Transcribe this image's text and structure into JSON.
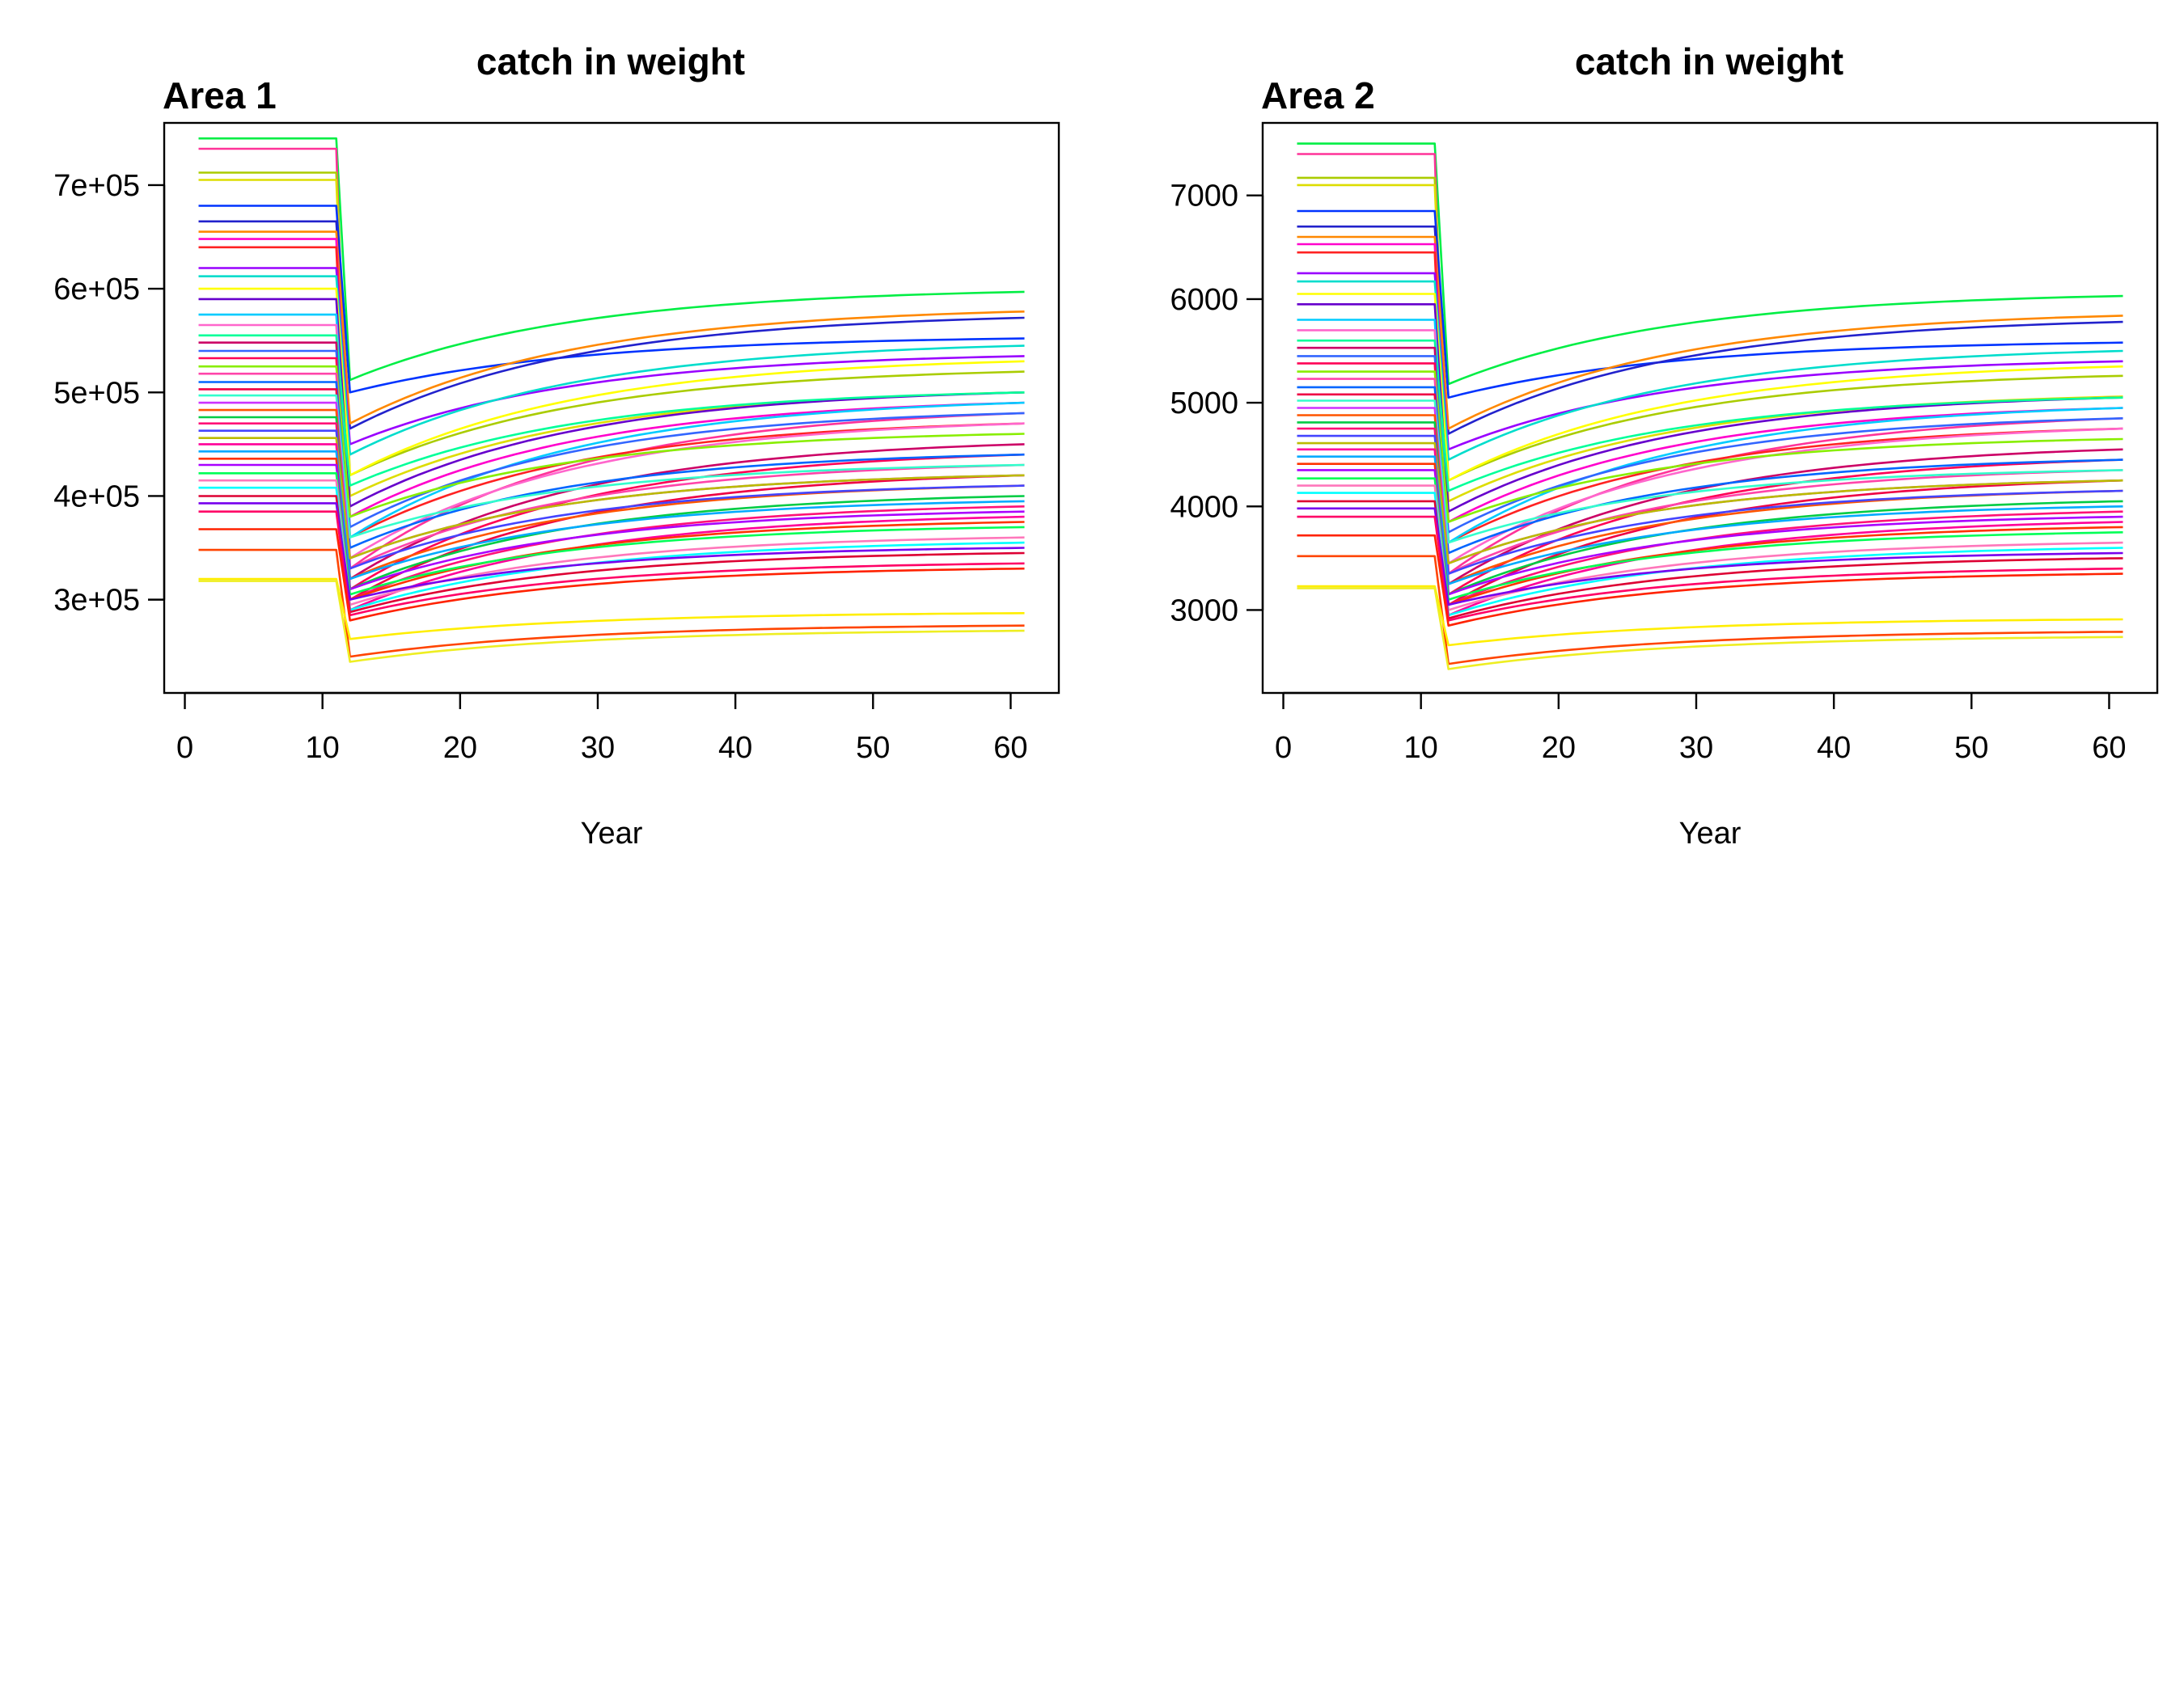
{
  "chart_data": [
    {
      "type": "line",
      "title": "catch in weight",
      "subtitle": "Area 1",
      "xlabel": "Year",
      "ylabel": "",
      "xlim": [
        -1.5,
        63.5
      ],
      "ylim": [
        210000,
        760000
      ],
      "xticks": [
        0,
        10,
        20,
        30,
        40,
        50,
        60
      ],
      "xtick_labels": [
        "0",
        "10",
        "20",
        "30",
        "40",
        "50",
        "60"
      ],
      "yticks": [
        300000,
        400000,
        500000,
        600000,
        700000
      ],
      "ytick_labels": [
        "3e+05",
        "4e+05",
        "5e+05",
        "6e+05",
        "7e+05"
      ],
      "grid": false,
      "legend": "none",
      "x_start": 1,
      "x_drop": 11,
      "x_end": 61,
      "series": [
        {
          "color": "#00ee44",
          "values_at_years": {
            "1": 745000,
            "12": 512000,
            "61": 597000
          }
        },
        {
          "color": "#ff3399",
          "values_at_years": {
            "1": 735000,
            "12": 330000,
            "61": 480000
          }
        },
        {
          "color": "#aacc00",
          "values_at_years": {
            "1": 712000,
            "12": 420000,
            "61": 520000
          }
        },
        {
          "color": "#dddd00",
          "values_at_years": {
            "1": 705000,
            "12": 400000,
            "61": 500000
          }
        },
        {
          "color": "#0033ff",
          "values_at_years": {
            "1": 680000,
            "12": 500000,
            "61": 552000
          }
        },
        {
          "color": "#2222cc",
          "values_at_years": {
            "1": 665000,
            "12": 465000,
            "61": 572000
          }
        },
        {
          "color": "#ff8800",
          "values_at_years": {
            "1": 655000,
            "12": 470000,
            "61": 578000
          }
        },
        {
          "color": "#ff00cc",
          "values_at_years": {
            "1": 648000,
            "12": 380000,
            "61": 490000
          }
        },
        {
          "color": "#ff2222",
          "values_at_years": {
            "1": 640000,
            "12": 360000,
            "61": 470000
          }
        },
        {
          "color": "#9900ff",
          "values_at_years": {
            "1": 620000,
            "12": 450000,
            "61": 535000
          }
        },
        {
          "color": "#00ddcc",
          "values_at_years": {
            "1": 612000,
            "12": 440000,
            "61": 545000
          }
        },
        {
          "color": "#ffff00",
          "values_at_years": {
            "1": 600000,
            "12": 420000,
            "61": 530000
          }
        },
        {
          "color": "#6600cc",
          "values_at_years": {
            "1": 590000,
            "12": 390000,
            "61": 500000
          }
        },
        {
          "color": "#00ccff",
          "values_at_years": {
            "1": 575000,
            "12": 360000,
            "61": 490000
          }
        },
        {
          "color": "#ff66cc",
          "values_at_years": {
            "1": 565000,
            "12": 340000,
            "61": 470000
          }
        },
        {
          "color": "#00ff99",
          "values_at_years": {
            "1": 555000,
            "12": 410000,
            "61": 500000
          }
        },
        {
          "color": "#cc0066",
          "values_at_years": {
            "1": 548000,
            "12": 320000,
            "61": 450000
          }
        },
        {
          "color": "#3366ff",
          "values_at_years": {
            "1": 540000,
            "12": 370000,
            "61": 480000
          }
        },
        {
          "color": "#ff0055",
          "values_at_years": {
            "1": 533000,
            "12": 310000,
            "61": 440000
          }
        },
        {
          "color": "#88ee00",
          "values_at_years": {
            "1": 525000,
            "12": 380000,
            "61": 460000
          }
        },
        {
          "color": "#ff44aa",
          "values_at_years": {
            "1": 518000,
            "12": 330000,
            "61": 430000
          }
        },
        {
          "color": "#0066ff",
          "values_at_years": {
            "1": 510000,
            "12": 350000,
            "61": 440000
          }
        },
        {
          "color": "#ee0044",
          "values_at_years": {
            "1": 503000,
            "12": 300000,
            "61": 420000
          }
        },
        {
          "color": "#33ffcc",
          "values_at_years": {
            "1": 497000,
            "12": 360000,
            "61": 430000
          }
        },
        {
          "color": "#cc33ff",
          "values_at_years": {
            "1": 490000,
            "12": 340000,
            "61": 420000
          }
        },
        {
          "color": "#ff5500",
          "values_at_years": {
            "1": 483000,
            "12": 320000,
            "61": 410000
          }
        },
        {
          "color": "#00cc44",
          "values_at_years": {
            "1": 476000,
            "12": 310000,
            "61": 400000
          }
        },
        {
          "color": "#ff1177",
          "values_at_years": {
            "1": 470000,
            "12": 300000,
            "61": 390000
          }
        },
        {
          "color": "#4444ff",
          "values_at_years": {
            "1": 463000,
            "12": 330000,
            "61": 410000
          }
        },
        {
          "color": "#bbbb00",
          "values_at_years": {
            "1": 456000,
            "12": 340000,
            "61": 420000
          }
        },
        {
          "color": "#ff0099",
          "values_at_years": {
            "1": 450000,
            "12": 290000,
            "61": 380000
          }
        },
        {
          "color": "#00aaff",
          "values_at_years": {
            "1": 443000,
            "12": 320000,
            "61": 395000
          }
        },
        {
          "color": "#ff3300",
          "values_at_years": {
            "1": 436000,
            "12": 300000,
            "61": 375000
          }
        },
        {
          "color": "#aa00ff",
          "values_at_years": {
            "1": 430000,
            "12": 310000,
            "61": 385000
          }
        },
        {
          "color": "#00ff55",
          "values_at_years": {
            "1": 422000,
            "12": 305000,
            "61": 370000
          }
        },
        {
          "color": "#ff77bb",
          "values_at_years": {
            "1": 415000,
            "12": 295000,
            "61": 360000
          }
        },
        {
          "color": "#00ffff",
          "values_at_years": {
            "1": 408000,
            "12": 290000,
            "61": 355000
          }
        },
        {
          "color": "#dd0033",
          "values_at_years": {
            "1": 400000,
            "12": 288000,
            "61": 345000
          }
        },
        {
          "color": "#7700ee",
          "values_at_years": {
            "1": 393000,
            "12": 300000,
            "61": 350000
          }
        },
        {
          "color": "#ff0066",
          "values_at_years": {
            "1": 385000,
            "12": 285000,
            "61": 335000
          }
        },
        {
          "color": "#ff2200",
          "values_at_years": {
            "1": 368000,
            "12": 280000,
            "61": 330000
          }
        },
        {
          "color": "#ff4400",
          "values_at_years": {
            "1": 348000,
            "12": 245000,
            "61": 275000
          }
        },
        {
          "color": "#ffee00",
          "values_at_years": {
            "1": 320000,
            "12": 262000,
            "61": 287000
          }
        },
        {
          "color": "#eeee22",
          "values_at_years": {
            "1": 318000,
            "12": 240000,
            "61": 270000
          }
        }
      ]
    },
    {
      "type": "line",
      "title": "catch in weight",
      "subtitle": "Area 2",
      "xlabel": "Year",
      "ylabel": "",
      "xlim": [
        -1.5,
        63.5
      ],
      "ylim": [
        2200,
        7700
      ],
      "xticks": [
        0,
        10,
        20,
        30,
        40,
        50,
        60
      ],
      "xtick_labels": [
        "0",
        "10",
        "20",
        "30",
        "40",
        "50",
        "60"
      ],
      "yticks": [
        3000,
        4000,
        5000,
        6000,
        7000
      ],
      "ytick_labels": [
        "3000",
        "4000",
        "5000",
        "6000",
        "7000"
      ],
      "grid": false,
      "legend": "none",
      "x_start": 1,
      "x_drop": 11,
      "x_end": 61,
      "series": [
        {
          "color": "#00ee44",
          "values_at_years": {
            "1": 7500,
            "12": 5180,
            "61": 6030
          }
        },
        {
          "color": "#ff3399",
          "values_at_years": {
            "1": 7400,
            "12": 3350,
            "61": 4850
          }
        },
        {
          "color": "#aacc00",
          "values_at_years": {
            "1": 7170,
            "12": 4250,
            "61": 5260
          }
        },
        {
          "color": "#dddd00",
          "values_at_years": {
            "1": 7100,
            "12": 4050,
            "61": 5060
          }
        },
        {
          "color": "#0033ff",
          "values_at_years": {
            "1": 6850,
            "12": 5050,
            "61": 5580
          }
        },
        {
          "color": "#2222cc",
          "values_at_years": {
            "1": 6700,
            "12": 4700,
            "61": 5780
          }
        },
        {
          "color": "#ff8800",
          "values_at_years": {
            "1": 6600,
            "12": 4750,
            "61": 5840
          }
        },
        {
          "color": "#ff00cc",
          "values_at_years": {
            "1": 6530,
            "12": 3850,
            "61": 4950
          }
        },
        {
          "color": "#ff2222",
          "values_at_years": {
            "1": 6450,
            "12": 3650,
            "61": 4750
          }
        },
        {
          "color": "#9900ff",
          "values_at_years": {
            "1": 6250,
            "12": 4550,
            "61": 5400
          }
        },
        {
          "color": "#00ddcc",
          "values_at_years": {
            "1": 6170,
            "12": 4450,
            "61": 5500
          }
        },
        {
          "color": "#ffff00",
          "values_at_years": {
            "1": 6050,
            "12": 4250,
            "61": 5350
          }
        },
        {
          "color": "#6600cc",
          "values_at_years": {
            "1": 5950,
            "12": 3950,
            "61": 5050
          }
        },
        {
          "color": "#00ccff",
          "values_at_years": {
            "1": 5800,
            "12": 3650,
            "61": 4950
          }
        },
        {
          "color": "#ff66cc",
          "values_at_years": {
            "1": 5700,
            "12": 3450,
            "61": 4750
          }
        },
        {
          "color": "#00ff99",
          "values_at_years": {
            "1": 5600,
            "12": 4150,
            "61": 5050
          }
        },
        {
          "color": "#cc0066",
          "values_at_years": {
            "1": 5530,
            "12": 3250,
            "61": 4550
          }
        },
        {
          "color": "#3366ff",
          "values_at_years": {
            "1": 5450,
            "12": 3750,
            "61": 4850
          }
        },
        {
          "color": "#ff0055",
          "values_at_years": {
            "1": 5380,
            "12": 3150,
            "61": 4450
          }
        },
        {
          "color": "#88ee00",
          "values_at_years": {
            "1": 5300,
            "12": 3850,
            "61": 4650
          }
        },
        {
          "color": "#ff44aa",
          "values_at_years": {
            "1": 5230,
            "12": 3350,
            "61": 4350
          }
        },
        {
          "color": "#0066ff",
          "values_at_years": {
            "1": 5150,
            "12": 3550,
            "61": 4450
          }
        },
        {
          "color": "#ee0044",
          "values_at_years": {
            "1": 5080,
            "12": 3050,
            "61": 4250
          }
        },
        {
          "color": "#33ffcc",
          "values_at_years": {
            "1": 5020,
            "12": 3650,
            "61": 4350
          }
        },
        {
          "color": "#cc33ff",
          "values_at_years": {
            "1": 4950,
            "12": 3450,
            "61": 4250
          }
        },
        {
          "color": "#ff5500",
          "values_at_years": {
            "1": 4880,
            "12": 3250,
            "61": 4150
          }
        },
        {
          "color": "#00cc44",
          "values_at_years": {
            "1": 4810,
            "12": 3150,
            "61": 4050
          }
        },
        {
          "color": "#ff1177",
          "values_at_years": {
            "1": 4750,
            "12": 3050,
            "61": 3950
          }
        },
        {
          "color": "#4444ff",
          "values_at_years": {
            "1": 4680,
            "12": 3350,
            "61": 4150
          }
        },
        {
          "color": "#bbbb00",
          "values_at_years": {
            "1": 4610,
            "12": 3450,
            "61": 4250
          }
        },
        {
          "color": "#ff0099",
          "values_at_years": {
            "1": 4550,
            "12": 2950,
            "61": 3850
          }
        },
        {
          "color": "#00aaff",
          "values_at_years": {
            "1": 4480,
            "12": 3250,
            "61": 4000
          }
        },
        {
          "color": "#ff3300",
          "values_at_years": {
            "1": 4410,
            "12": 3050,
            "61": 3800
          }
        },
        {
          "color": "#aa00ff",
          "values_at_years": {
            "1": 4350,
            "12": 3150,
            "61": 3900
          }
        },
        {
          "color": "#00ff55",
          "values_at_years": {
            "1": 4270,
            "12": 3100,
            "61": 3750
          }
        },
        {
          "color": "#ff77bb",
          "values_at_years": {
            "1": 4200,
            "12": 3000,
            "61": 3650
          }
        },
        {
          "color": "#00ffff",
          "values_at_years": {
            "1": 4130,
            "12": 2950,
            "61": 3600
          }
        },
        {
          "color": "#dd0033",
          "values_at_years": {
            "1": 4050,
            "12": 2920,
            "61": 3500
          }
        },
        {
          "color": "#7700ee",
          "values_at_years": {
            "1": 3980,
            "12": 3050,
            "61": 3550
          }
        },
        {
          "color": "#ff0066",
          "values_at_years": {
            "1": 3900,
            "12": 2900,
            "61": 3400
          }
        },
        {
          "color": "#ff2200",
          "values_at_years": {
            "1": 3720,
            "12": 2850,
            "61": 3350
          }
        },
        {
          "color": "#ff4400",
          "values_at_years": {
            "1": 3520,
            "12": 2480,
            "61": 2790
          }
        },
        {
          "color": "#ffee00",
          "values_at_years": {
            "1": 3230,
            "12": 2660,
            "61": 2910
          }
        },
        {
          "color": "#eeee22",
          "values_at_years": {
            "1": 3210,
            "12": 2430,
            "61": 2740
          }
        }
      ]
    }
  ]
}
